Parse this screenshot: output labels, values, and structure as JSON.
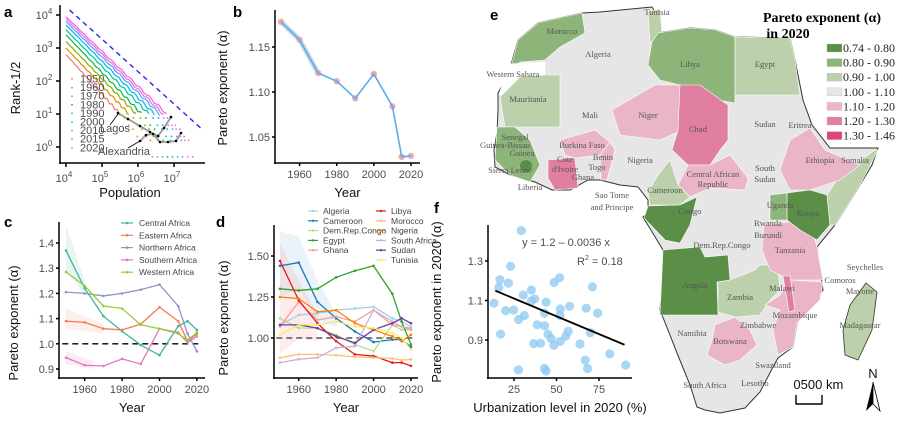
{
  "panel_labels": [
    "a",
    "b",
    "c",
    "d",
    "e",
    "f"
  ],
  "chart_data": [
    {
      "panel": "a",
      "type": "line",
      "xlabel": "Population",
      "ylabel": "Rank-1/2",
      "xscale": "log",
      "yscale": "log",
      "xticks": [
        {
          "base": "10",
          "exp": "4"
        },
        {
          "base": "10",
          "exp": "5"
        },
        {
          "base": "10",
          "exp": "6"
        },
        {
          "base": "10",
          "exp": "7"
        }
      ],
      "yticks": [
        {
          "base": "10",
          "exp": "0"
        },
        {
          "base": "10",
          "exp": "1"
        },
        {
          "base": "10",
          "exp": "2"
        },
        {
          "base": "10",
          "exp": "3"
        },
        {
          "base": "10",
          "exp": "4"
        }
      ],
      "series": [
        {
          "name": "1950",
          "color": "#f8766d",
          "x": [
            10000,
            316000
          ],
          "y": [
            630,
            10
          ]
        },
        {
          "name": "1960",
          "color": "#d39200",
          "x": [
            10000,
            560000
          ],
          "y": [
            1000,
            10
          ]
        },
        {
          "name": "1970",
          "color": "#93aa00",
          "x": [
            10000,
            890000
          ],
          "y": [
            1580,
            10
          ]
        },
        {
          "name": "1980",
          "color": "#00ba38",
          "x": [
            10000,
            1260000
          ],
          "y": [
            2510,
            10
          ]
        },
        {
          "name": "1990",
          "color": "#00c19f",
          "x": [
            10000,
            2000000
          ],
          "y": [
            3550,
            10
          ]
        },
        {
          "name": "2000",
          "color": "#00b9e3",
          "x": [
            10000,
            2820000
          ],
          "y": [
            5010,
            10
          ]
        },
        {
          "name": "2010",
          "color": "#619cff",
          "x": [
            10000,
            3980000
          ],
          "y": [
            6310,
            10
          ]
        },
        {
          "name": "2015",
          "color": "#db72fb",
          "x": [
            10000,
            5010000
          ],
          "y": [
            7590,
            10
          ]
        },
        {
          "name": "2020",
          "color": "#ff61c3",
          "x": [
            10000,
            6310000
          ],
          "y": [
            8910,
            10
          ]
        }
      ],
      "reference_line": {
        "style": "dashed",
        "color": "#2b2bd6",
        "x": [
          12600,
          63000000
        ],
        "y": [
          14100,
          3.3
        ]
      },
      "annotations": [
        "Lagos",
        "Alexandria"
      ]
    },
    {
      "panel": "b",
      "type": "line",
      "xlabel": "Year",
      "ylabel": "Pareto exponent (α)",
      "xticks": [
        1960,
        1980,
        2000,
        2020
      ],
      "yticks": [
        "1.05",
        "1.10",
        "1.15"
      ],
      "line_color": "#5aade8",
      "marker_color": "#f2a9b4",
      "x": [
        1950,
        1960,
        1970,
        1980,
        1990,
        2000,
        2010,
        2015,
        2020
      ],
      "y": [
        1.178,
        1.158,
        1.121,
        1.112,
        1.093,
        1.12,
        1.084,
        1.028,
        1.029
      ]
    },
    {
      "panel": "c",
      "type": "line",
      "xlabel": "Year",
      "ylabel": "Pareto exponent (α)",
      "xticks": [
        1960,
        1980,
        2000,
        2020
      ],
      "yticks": [
        "0.9",
        "1.0",
        "1.1",
        "1.2",
        "1.3",
        "1.4"
      ],
      "reference_line": {
        "y": 1.0,
        "style": "dashed"
      },
      "x": [
        1950,
        1960,
        1970,
        1980,
        1990,
        2000,
        2010,
        2015,
        2020
      ],
      "series": [
        {
          "name": "Central Africa",
          "color": "#3cb89a",
          "values": [
            1.37,
            1.22,
            1.11,
            1.05,
            0.995,
            0.955,
            1.07,
            1.09,
            1.055
          ]
        },
        {
          "name": "Eastern Africa",
          "color": "#f07c4f",
          "values": [
            1.09,
            1.085,
            1.06,
            1.055,
            1.078,
            1.145,
            1.09,
            1.01,
            1.04
          ]
        },
        {
          "name": "Northern Africa",
          "color": "#8c96c6",
          "values": [
            1.205,
            1.2,
            1.19,
            1.2,
            1.215,
            1.235,
            1.15,
            1.04,
            0.97
          ]
        },
        {
          "name": "Southern Africa",
          "color": "#e377c2",
          "values": [
            0.945,
            0.915,
            0.912,
            0.94,
            0.92,
            1.06,
            1.045,
            1.005,
            1.03
          ]
        },
        {
          "name": "Western Africa",
          "color": "#99cc33",
          "values": [
            1.285,
            1.23,
            1.15,
            1.14,
            1.075,
            1.06,
            1.04,
            1.015,
            1.045
          ]
        }
      ]
    },
    {
      "panel": "d",
      "type": "line",
      "xlabel": "Year",
      "ylabel": "Pareto exponent (α)",
      "xticks": [
        1960,
        1980,
        2000,
        2020
      ],
      "yticks": [
        "1.00",
        "1.25",
        "1.50"
      ],
      "reference_line": {
        "y": 1.0,
        "style": "dashed"
      },
      "x": [
        1950,
        1960,
        1970,
        1980,
        1990,
        2000,
        2010,
        2015,
        2020
      ],
      "series": [
        {
          "name": "Algeria",
          "color": "#a6cee3",
          "values": [
            1.08,
            1.14,
            1.15,
            1.17,
            1.18,
            1.19,
            1.12,
            1.1,
            1.07
          ]
        },
        {
          "name": "Cameroon",
          "color": "#1f78b4",
          "values": [
            1.44,
            1.46,
            1.22,
            1.12,
            1.04,
            0.975,
            0.99,
            0.99,
            0.945
          ]
        },
        {
          "name": "Dem.Rep.Congo",
          "color": "#b2df8a",
          "values": [
            1.12,
            1.06,
            1.06,
            1.02,
            0.96,
            0.92,
            1.08,
            1.05,
            1.05
          ]
        },
        {
          "name": "Egypt",
          "color": "#33a02c",
          "values": [
            1.3,
            1.29,
            1.3,
            1.37,
            1.41,
            1.44,
            1.27,
            1.1,
            0.96
          ]
        },
        {
          "name": "Ghana",
          "color": "#fb9a99",
          "values": [
            1.07,
            1.22,
            1.11,
            1.13,
            1.1,
            1.17,
            1.08,
            1.07,
            1.05
          ]
        },
        {
          "name": "Libya",
          "color": "#e31a1c",
          "values": [
            1.47,
            1.23,
            1.09,
            0.98,
            0.9,
            0.89,
            0.85,
            0.85,
            0.83
          ]
        },
        {
          "name": "Morocco",
          "color": "#fdbf6f",
          "values": [
            0.88,
            0.9,
            0.9,
            0.895,
            0.885,
            0.88,
            0.875,
            0.865,
            0.87
          ]
        },
        {
          "name": "Nigeria",
          "color": "#ff7f00",
          "values": [
            1.25,
            1.24,
            1.16,
            1.17,
            1.09,
            1.05,
            1.01,
            0.98,
            1.02
          ]
        },
        {
          "name": "South Africa",
          "color": "#cab2d6",
          "values": [
            0.85,
            0.87,
            0.88,
            0.94,
            0.95,
            1.17,
            1.1,
            1.07,
            1.06
          ]
        },
        {
          "name": "Sudan",
          "color": "#6a3d9a",
          "values": [
            1.08,
            1.08,
            1.06,
            1.01,
            0.97,
            1.05,
            1.09,
            1.12,
            1.09
          ]
        },
        {
          "name": "Tunisia",
          "color": "#f5ec6a",
          "values": [
            1.02,
            1.08,
            1.08,
            1.1,
            1.07,
            1.06,
            1.03,
            1.0,
            0.93
          ]
        }
      ]
    },
    {
      "panel": "f",
      "type": "scatter",
      "xlabel": "Urbanization level in 2020 (%)",
      "ylabel": "Pareto exponent in 2020 (α)",
      "xticks": [
        25,
        50,
        75
      ],
      "yticks": [
        "0.9",
        "1.1",
        "1.3"
      ],
      "point_color": "#8ec8f2",
      "equation": "y = 1.2 – 0.0036 x",
      "r2_label": "R",
      "r2_value": " = 0.18",
      "fit": {
        "intercept": 1.2,
        "slope": -0.0036,
        "x_range": [
          14,
          90
        ]
      },
      "points": [
        [
          29.3,
          1.454
        ],
        [
          23,
          1.273
        ],
        [
          16.7,
          1.205
        ],
        [
          16.1,
          1.166
        ],
        [
          21.7,
          1.188
        ],
        [
          13.2,
          1.086
        ],
        [
          20.1,
          1.049
        ],
        [
          24.8,
          1.052
        ],
        [
          30.5,
          1.128
        ],
        [
          35.2,
          1.153
        ],
        [
          35.2,
          1.097
        ],
        [
          37.2,
          1.108
        ],
        [
          31.1,
          1.024
        ],
        [
          27.7,
          1.004
        ],
        [
          17.1,
          0.93
        ],
        [
          43.9,
          1.091
        ],
        [
          42.9,
          1.036
        ],
        [
          48.6,
          1.191
        ],
        [
          51.8,
          1.215
        ],
        [
          52.2,
          1.057
        ],
        [
          52.0,
          1.024
        ],
        [
          57.7,
          1.071
        ],
        [
          71.1,
          1.169
        ],
        [
          67.5,
          1.061
        ],
        [
          74.2,
          1.036
        ],
        [
          38.7,
          0.977
        ],
        [
          43.0,
          0.972
        ],
        [
          45.0,
          0.93
        ],
        [
          46.9,
          0.907
        ],
        [
          40.6,
          0.883
        ],
        [
          36.6,
          0.882
        ],
        [
          48.5,
          0.873
        ],
        [
          52.2,
          0.893
        ],
        [
          55.5,
          0.92
        ],
        [
          56.9,
          0.944
        ],
        [
          63.8,
          0.88
        ],
        [
          69.9,
          0.937
        ],
        [
          66.9,
          0.798
        ],
        [
          68.3,
          0.756
        ],
        [
          81.3,
          0.83
        ],
        [
          90.7,
          0.773
        ],
        [
          27.6,
          0.749
        ],
        [
          42.9,
          0.756
        ],
        [
          43.9,
          0.743
        ]
      ]
    }
  ],
  "map": {
    "legend_title_1": "Pareto exponent (α)",
    "legend_title_2": "in 2020",
    "classes": [
      {
        "label": "0.74 - 0.80",
        "color": "#5b8f47"
      },
      {
        "label": "0.80 - 0.90",
        "color": "#8db57a"
      },
      {
        "label": "0.90 - 1.00",
        "color": "#bcd0ab"
      },
      {
        "label": "1.00 - 1.10",
        "color": "#e6e6e6"
      },
      {
        "label": "1.10 - 1.20",
        "color": "#ebb5c8"
      },
      {
        "label": "1.20 - 1.30",
        "color": "#e07fa2"
      },
      {
        "label": "1.30 - 1.46",
        "color": "#d9477d"
      }
    ],
    "country_labels": [
      "Tunisia",
      "Morocco",
      "Algeria",
      "Libya",
      "Egypt",
      "Western Sahara",
      "Mauritania",
      "Mali",
      "Niger",
      "Chad",
      "Sudan",
      "Eritrea",
      "Senegal",
      "Guinea-Bissau",
      "Guinea",
      "Burkina Faso",
      "Benin",
      "Nigeria",
      "Cote",
      "d'Ivoire",
      "Togo",
      "Ghana",
      "Sierra Leone",
      "Liberia",
      "Ethiopia",
      "Somalia",
      "Central African",
      "Republic",
      "South",
      "Sudan",
      "Cameroon",
      "Sao Tome",
      "and Principe",
      "Congo",
      "Uganda",
      "Kenya",
      "Rwanda",
      "Burundi",
      "Dem.Rep.Congo",
      "Tanzania",
      "Seychelles",
      "Comoros",
      "Mayotte",
      "Angola",
      "Zambia",
      "Malawi",
      "Mozambique",
      "Madagascar",
      "Zimbabwe",
      "Namibia",
      "Botswana",
      "Swaziland",
      "South Africa",
      "Lesotho"
    ],
    "scale_bar": {
      "zero": "0",
      "label": "500 km"
    },
    "north_label": "N"
  }
}
